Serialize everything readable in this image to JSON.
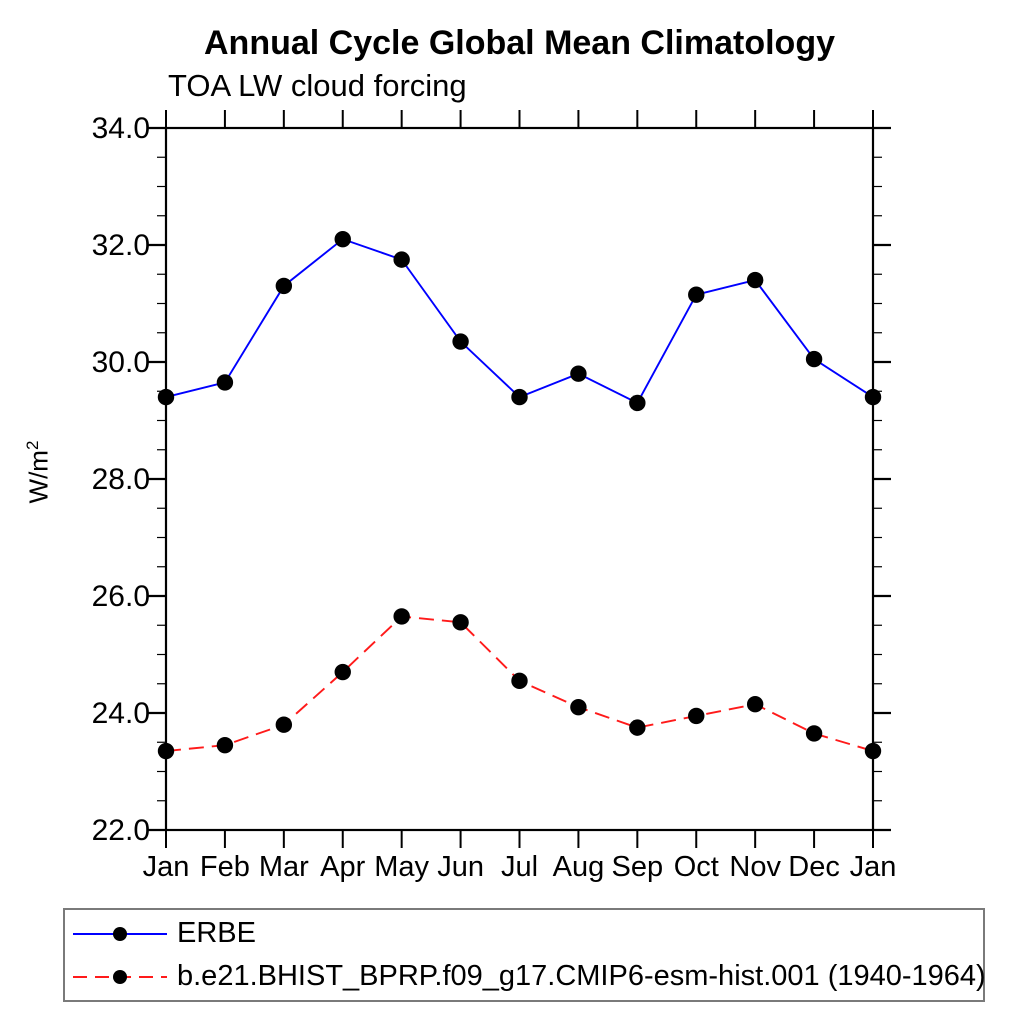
{
  "page": {
    "background": "#ffffff",
    "text_color": "#000000"
  },
  "chart_data": {
    "type": "line",
    "title": "Annual Cycle Global Mean Climatology",
    "subtitle": "TOA LW cloud forcing",
    "ylabel_base": "W/m",
    "ylabel_exponent": "2",
    "x_categories": [
      "Jan",
      "Feb",
      "Mar",
      "Apr",
      "May",
      "Jun",
      "Jul",
      "Aug",
      "Sep",
      "Oct",
      "Nov",
      "Dec",
      "Jan"
    ],
    "ylim": [
      22.0,
      34.0
    ],
    "y_major_tick_step": 2.0,
    "y_minor_tick_step": 0.5,
    "y_tick_labels": [
      "22.0",
      "24.0",
      "26.0",
      "28.0",
      "30.0",
      "32.0",
      "34.0"
    ],
    "grid": false,
    "axis_color": "#000000",
    "marker": "filled-circle",
    "marker_color": "#000000",
    "legend_position": "bottom-left-box",
    "series": [
      {
        "name": "ERBE",
        "color": "#0000ff",
        "line_style": "solid",
        "values": [
          29.4,
          29.65,
          31.3,
          32.1,
          31.75,
          30.35,
          29.4,
          29.8,
          29.3,
          31.15,
          31.4,
          30.05,
          29.4
        ]
      },
      {
        "name": "b.e21.BHIST_BPRP.f09_g17.CMIP6-esm-hist.001 (1940-1964)",
        "color": "#ff1a1a",
        "line_style": "dashed",
        "values": [
          23.35,
          23.45,
          23.8,
          24.7,
          25.65,
          25.55,
          24.55,
          24.1,
          23.75,
          23.95,
          24.15,
          23.65,
          23.35
        ]
      }
    ]
  }
}
